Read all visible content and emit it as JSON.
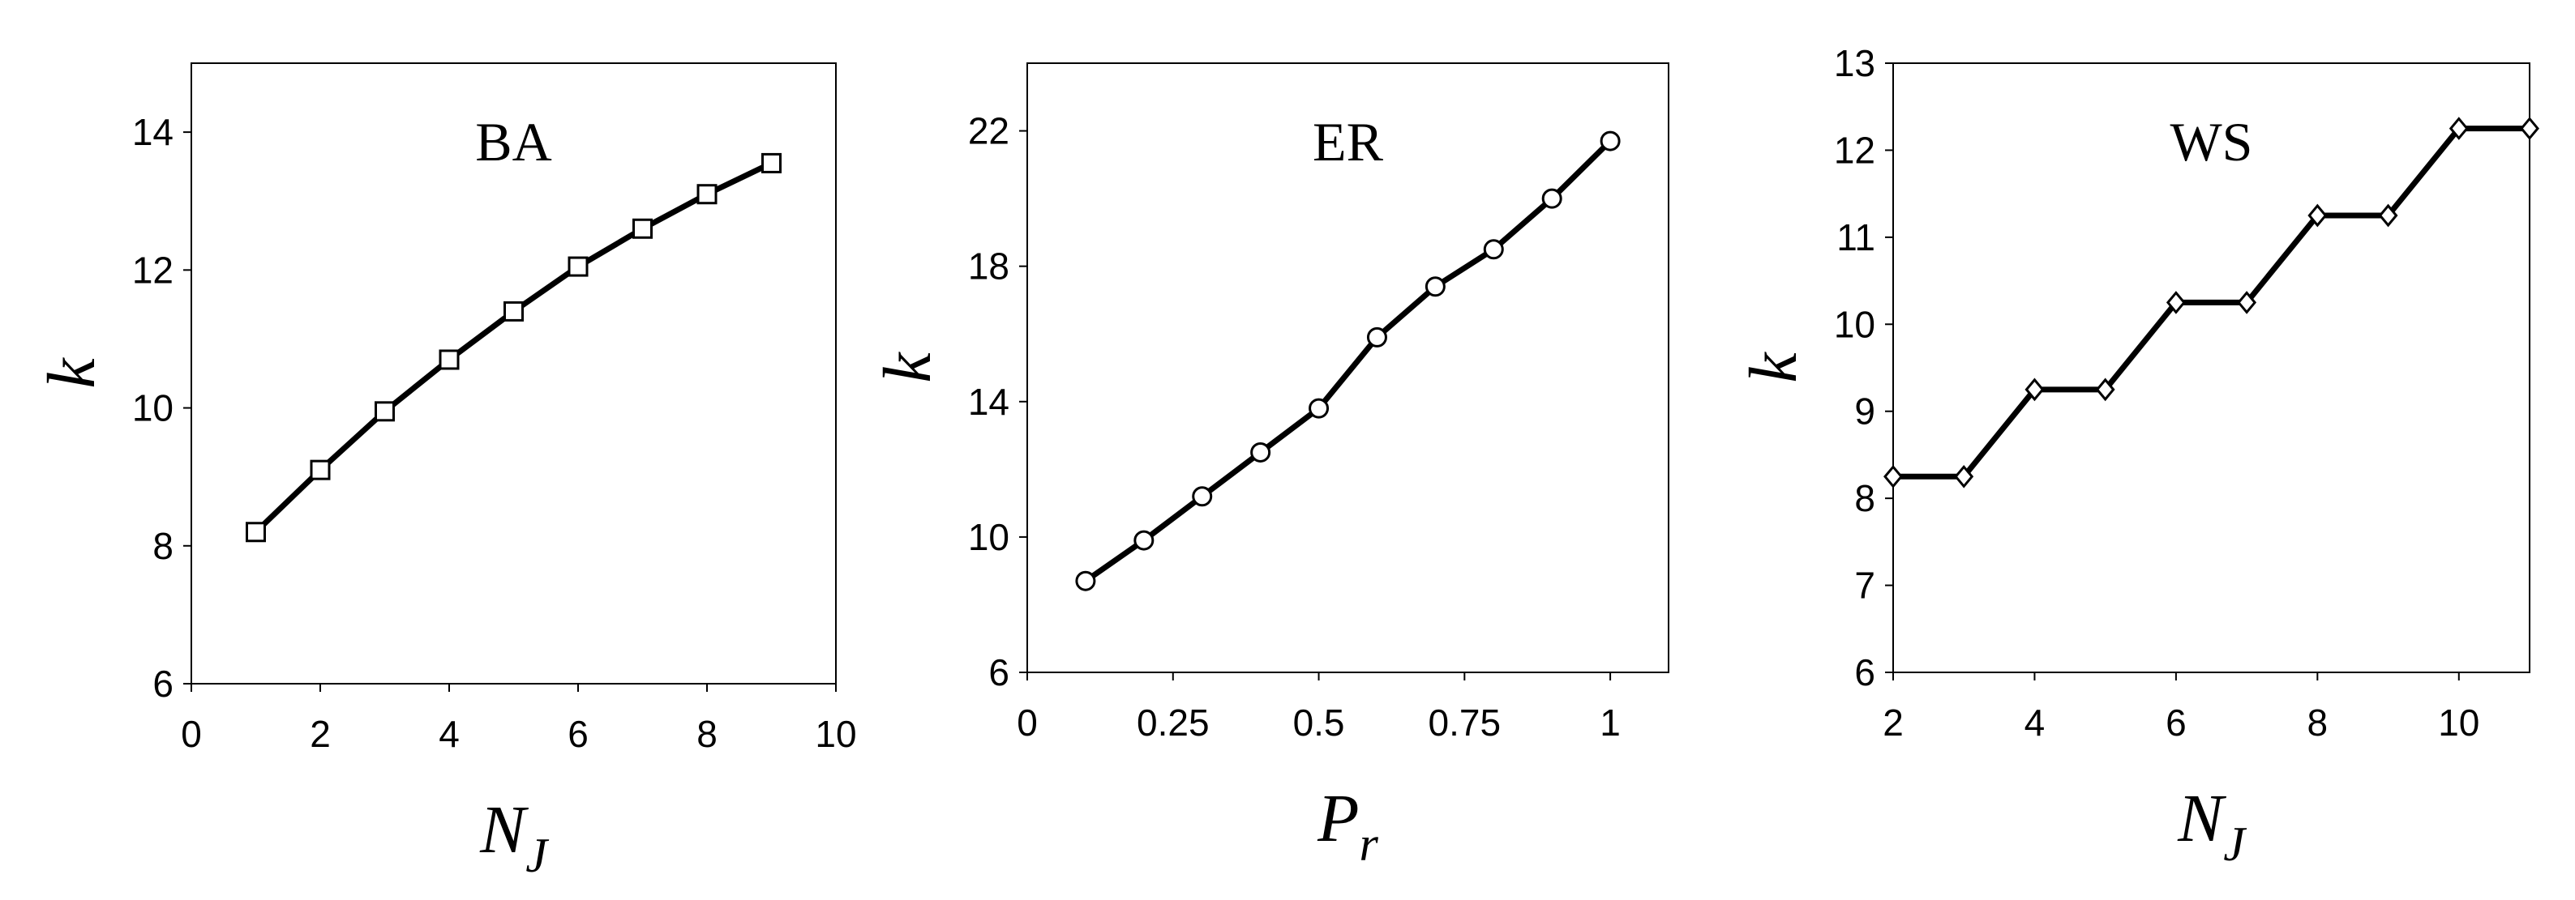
{
  "chart_data": [
    {
      "type": "line",
      "title": "BA",
      "xlabel": "N",
      "xlabel_sub": "J",
      "ylabel": "k",
      "marker": "square",
      "color": "#000000",
      "x": [
        1,
        2,
        3,
        4,
        5,
        6,
        7,
        8,
        9
      ],
      "values": [
        8.2,
        9.1,
        9.95,
        10.7,
        11.4,
        12.05,
        12.6,
        13.1,
        13.55
      ],
      "xlim": [
        0,
        10
      ],
      "xticks": [
        0,
        2,
        4,
        6,
        8,
        10
      ],
      "ylim": [
        6,
        15
      ],
      "yticks": [
        6,
        8,
        10,
        12,
        14
      ]
    },
    {
      "type": "line",
      "title": "ER",
      "xlabel": "P",
      "xlabel_sub": "r",
      "ylabel": "k",
      "marker": "circle",
      "color": "#000000",
      "x": [
        0.1,
        0.2,
        0.3,
        0.4,
        0.5,
        0.6,
        0.7,
        0.8,
        0.9,
        1.0
      ],
      "values": [
        8.7,
        9.9,
        11.2,
        12.5,
        13.8,
        15.9,
        17.4,
        18.5,
        20.0,
        21.7
      ],
      "xlim": [
        0,
        1.1
      ],
      "xticks": [
        0,
        0.25,
        0.5,
        0.75,
        1
      ],
      "ylim": [
        6,
        24
      ],
      "yticks": [
        6,
        10,
        14,
        18,
        22
      ]
    },
    {
      "type": "line",
      "title": "WS",
      "xlabel": "N",
      "xlabel_sub": "J",
      "ylabel": "k",
      "marker": "diamond",
      "color": "#000000",
      "x": [
        2,
        3,
        4,
        5,
        6,
        7,
        8,
        9,
        10,
        11
      ],
      "values": [
        8.25,
        8.25,
        9.25,
        9.25,
        10.25,
        10.25,
        11.25,
        11.25,
        12.25,
        12.25
      ],
      "xlim": [
        2,
        11
      ],
      "xticks": [
        2,
        4,
        6,
        8,
        10
      ],
      "ylim": [
        6,
        13
      ],
      "yticks": [
        6,
        7,
        8,
        9,
        10,
        11,
        12,
        13
      ]
    }
  ]
}
